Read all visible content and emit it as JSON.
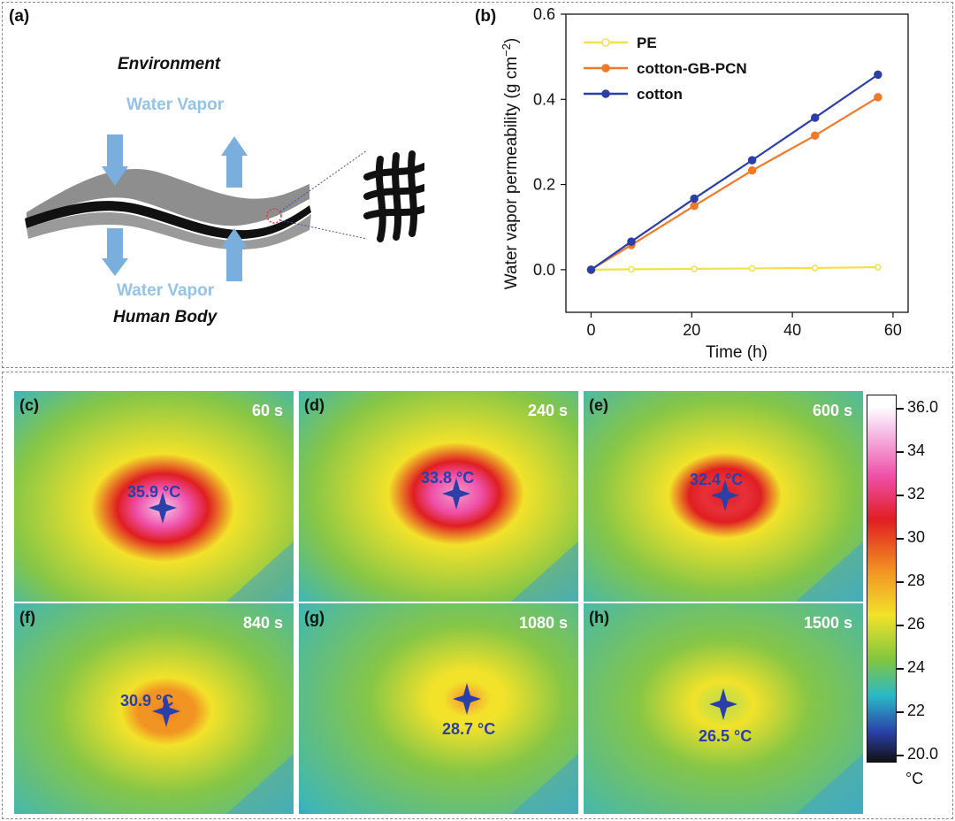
{
  "panel_a": {
    "label": "(a)",
    "top_text": "Environment",
    "bottom_text": "Human Body",
    "vapor_top": "Water Vapor",
    "vapor_bottom": "Water Vapor"
  },
  "chart_data": {
    "type": "line",
    "label": "(b)",
    "xlabel": "Time (h)",
    "ylabel": "Water vapor permeability (g cm",
    "ylabel_sup": "−2",
    "ylabel_close": ")",
    "xlim": [
      -5,
      63
    ],
    "ylim": [
      -0.1,
      0.6
    ],
    "xticks": [
      "0",
      "20",
      "40",
      "60"
    ],
    "yticks": [
      "0.0",
      "0.2",
      "0.4",
      "0.6"
    ],
    "legend_position": "top-left",
    "x": [
      0,
      8,
      20.5,
      32,
      44.5,
      57
    ],
    "series": [
      {
        "name": "PE",
        "color": "#f2e14c",
        "values": [
          0,
          0.001,
          0.002,
          0.003,
          0.004,
          0.006
        ]
      },
      {
        "name": "cotton-GB-PCN",
        "color": "#f07a2a",
        "values": [
          0,
          0.058,
          0.15,
          0.233,
          0.315,
          0.405
        ]
      },
      {
        "name": "cotton",
        "color": "#2a3fa8",
        "values": [
          0,
          0.066,
          0.167,
          0.257,
          0.357,
          0.458
        ]
      }
    ]
  },
  "thermal_panels": [
    {
      "label": "(c)",
      "time": "60 s",
      "temp": "35.9 °C"
    },
    {
      "label": "(d)",
      "time": "240 s",
      "temp": "33.8 °C"
    },
    {
      "label": "(e)",
      "time": "600 s",
      "temp": "32.4 °C"
    },
    {
      "label": "(f)",
      "time": "840 s",
      "temp": "30.9 °C"
    },
    {
      "label": "(g)",
      "time": "1080 s",
      "temp": "28.7 °C"
    },
    {
      "label": "(h)",
      "time": "1500 s",
      "temp": "26.5 °C"
    }
  ],
  "colorbar": {
    "ticks": [
      "36.0",
      "34",
      "32",
      "30",
      "28",
      "26",
      "24",
      "22",
      "20.0"
    ],
    "unit": "°C",
    "colors": {
      "c36": "#ffffff",
      "c34": "#ef4fa8",
      "c32": "#e01e22",
      "c30": "#f29422",
      "c28": "#f2e22a",
      "c26": "#82c63e",
      "c24": "#2ab9c8",
      "c22": "#2a3fa8",
      "c20": "#111111"
    }
  }
}
